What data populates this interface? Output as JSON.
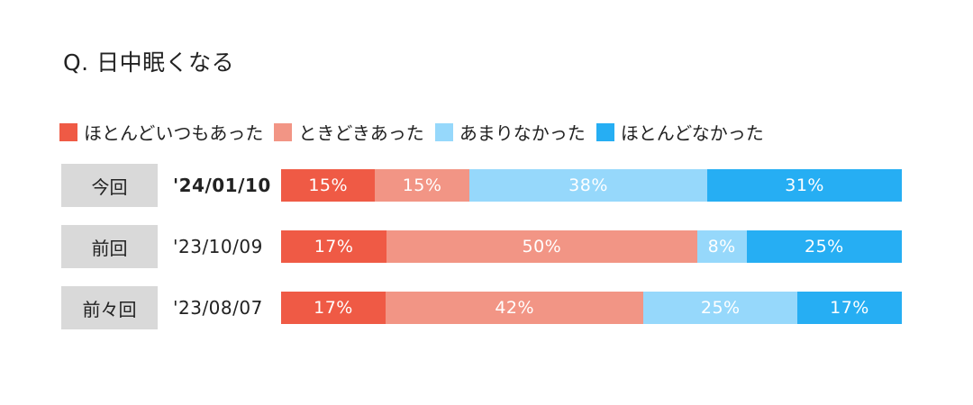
{
  "title": "Q. 日中眠くなる",
  "chart_data": {
    "type": "bar",
    "stacked": true,
    "orientation": "horizontal",
    "legend_position": "top",
    "legend": [
      {
        "label": "ほとんどいつもあった",
        "color": "#ef5a45"
      },
      {
        "label": "ときどきあった",
        "color": "#f29585"
      },
      {
        "label": "あまりなかった",
        "color": "#96d8fb"
      },
      {
        "label": "ほとんどなかった",
        "color": "#26aef3"
      }
    ],
    "rows": [
      {
        "label": "今回",
        "date": "'24/01/10",
        "bold": true,
        "values": [
          15,
          15,
          38,
          31
        ],
        "value_labels": [
          "15%",
          "15%",
          "38%",
          "31%"
        ]
      },
      {
        "label": "前回",
        "date": "'23/10/09",
        "bold": false,
        "values": [
          17,
          50,
          8,
          25
        ],
        "value_labels": [
          "17%",
          "50%",
          "8%",
          "25%"
        ]
      },
      {
        "label": "前々回",
        "date": "'23/08/07",
        "bold": false,
        "values": [
          17,
          42,
          25,
          17
        ],
        "value_labels": [
          "17%",
          "42%",
          "25%",
          "17%"
        ]
      }
    ]
  }
}
